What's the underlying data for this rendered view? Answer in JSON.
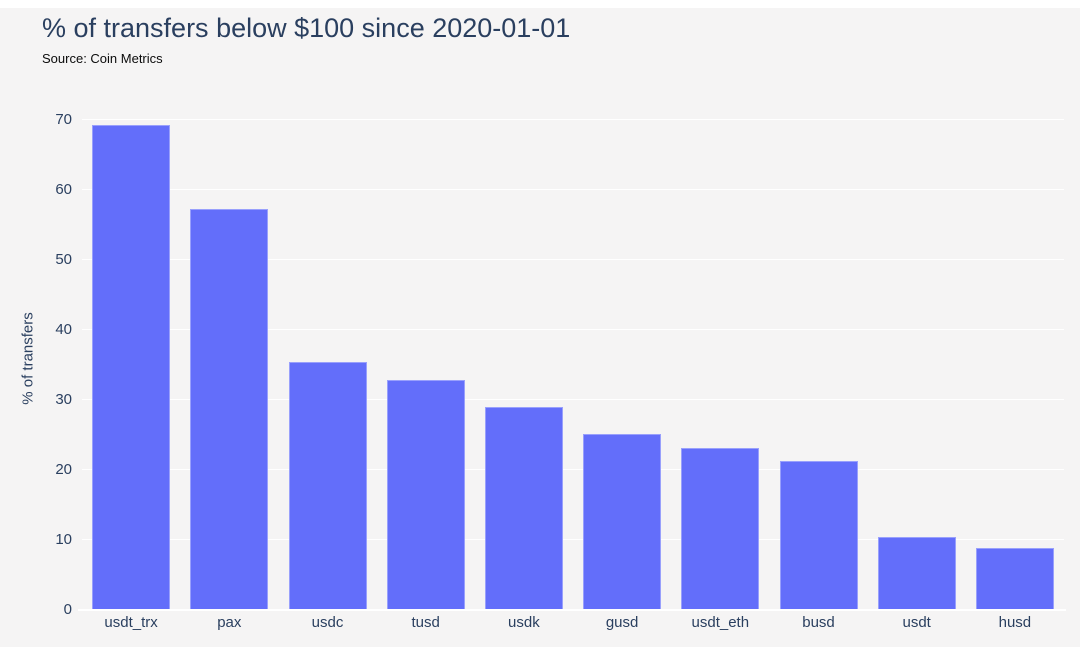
{
  "header": {
    "title": "% of transfers below $100 since 2020-01-01",
    "source": "Source: Coin Metrics"
  },
  "colors": {
    "background": "#f5f4f4",
    "bar_fill": "#636efa",
    "gridline": "#ffffff",
    "text_primary": "#2a3f5f",
    "source_text": "#0b0b0b"
  },
  "chart_data": {
    "type": "bar",
    "title": "% of transfers below $100 since 2020-01-01",
    "subtitle": "Source: Coin Metrics",
    "categories": [
      "usdt_trx",
      "pax",
      "usdc",
      "tusd",
      "usdk",
      "gusd",
      "usdt_eth",
      "busd",
      "usdt",
      "husd"
    ],
    "values": [
      69.3,
      57.3,
      35.4,
      32.8,
      29.0,
      25.1,
      23.2,
      21.3,
      10.4,
      8.8
    ],
    "xlabel": "",
    "ylabel": "% of transfers",
    "yticks": [
      0,
      10,
      20,
      30,
      40,
      50,
      60,
      70
    ],
    "ylim": [
      0,
      72.1
    ],
    "grid": true,
    "legend": false
  }
}
